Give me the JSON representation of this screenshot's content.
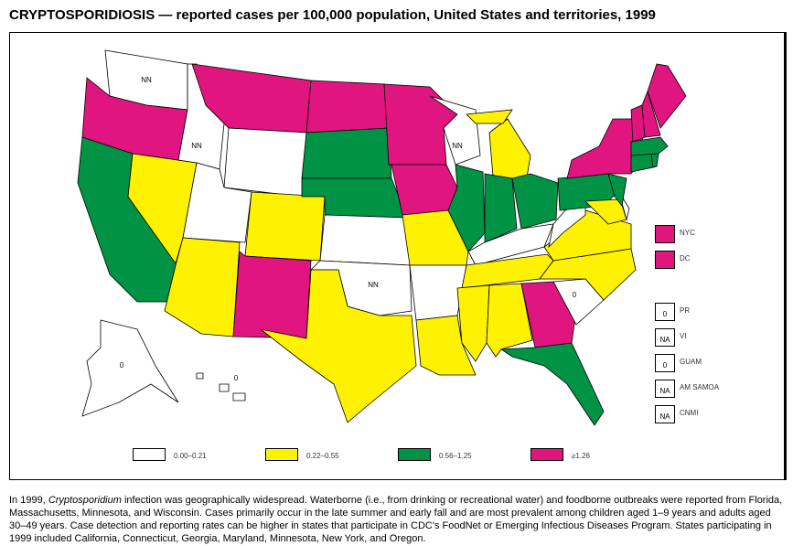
{
  "title": "CRYPTOSPORIDIOSIS — reported cases per 100,000 population, United States and territories, 1999",
  "colors": {
    "0.00-0.21": "#ffffff",
    "0.22-0.55": "#fff200",
    "0.56-1.25": "#009245",
    ">=1.26": "#e0157f"
  },
  "legend": [
    {
      "label": "0.00–0.21",
      "color": "#ffffff"
    },
    {
      "label": "0.22–0.55",
      "color": "#fff200"
    },
    {
      "label": "0.56–1.25",
      "color": "#009245"
    },
    {
      "label": "≥1.26",
      "color": "#e0157f"
    }
  ],
  "states": {
    "WA": {
      "cat": 0,
      "label": "NN"
    },
    "OR": {
      "cat": 3
    },
    "CA": {
      "cat": 2
    },
    "NV": {
      "cat": 1
    },
    "ID": {
      "cat": 0,
      "label": "NN"
    },
    "MT": {
      "cat": 3
    },
    "WY": {
      "cat": 0
    },
    "UT": {
      "cat": 0
    },
    "AZ": {
      "cat": 1
    },
    "CO": {
      "cat": 1
    },
    "NM": {
      "cat": 3
    },
    "ND": {
      "cat": 3
    },
    "SD": {
      "cat": 2
    },
    "NE": {
      "cat": 2
    },
    "KS": {
      "cat": 0
    },
    "OK": {
      "cat": 0,
      "label": "NN"
    },
    "TX": {
      "cat": 1
    },
    "MN": {
      "cat": 3
    },
    "IA": {
      "cat": 3
    },
    "MO": {
      "cat": 1
    },
    "AR": {
      "cat": 0
    },
    "LA": {
      "cat": 1
    },
    "WI": {
      "cat": 0,
      "label": "NN"
    },
    "IL": {
      "cat": 2
    },
    "MI": {
      "cat": 1
    },
    "IN": {
      "cat": 2
    },
    "OH": {
      "cat": 2
    },
    "KY": {
      "cat": 0
    },
    "TN": {
      "cat": 1
    },
    "MS": {
      "cat": 1
    },
    "AL": {
      "cat": 1
    },
    "GA": {
      "cat": 3
    },
    "FL": {
      "cat": 2
    },
    "SC": {
      "cat": 0,
      "label": "0"
    },
    "NC": {
      "cat": 1
    },
    "VA": {
      "cat": 1
    },
    "WV": {
      "cat": 0
    },
    "MD": {
      "cat": 1
    },
    "DE": {
      "cat": 0
    },
    "PA": {
      "cat": 2
    },
    "NJ": {
      "cat": 2
    },
    "NY": {
      "cat": 3
    },
    "CT": {
      "cat": 2
    },
    "RI": {
      "cat": 2
    },
    "MA": {
      "cat": 2
    },
    "VT": {
      "cat": 3
    },
    "NH": {
      "cat": 3
    },
    "ME": {
      "cat": 3
    },
    "AK": {
      "cat": 0,
      "label": "0"
    },
    "HI": {
      "cat": 0,
      "label": "0"
    }
  },
  "cities": [
    {
      "label": "NYC",
      "cat": 3
    },
    {
      "label": "DC",
      "cat": 3
    }
  ],
  "territories": [
    {
      "label": "PR",
      "value": "0"
    },
    {
      "label": "VI",
      "value": "NA"
    },
    {
      "label": "GUAM",
      "value": "0"
    },
    {
      "label": "AM SAMOA",
      "value": "NA"
    },
    {
      "label": "CNMI",
      "value": "NA"
    }
  ],
  "caption_parts": {
    "pre": "In 1999, ",
    "italic": "Cryptosporidium",
    "post": " infection was geographically widespread. Waterborne (i.e., from drinking or recreational water) and foodborne outbreaks were reported from Florida, Massachusetts, Minnesota, and Wisconsin. Cases primarily occur in the late summer and early fall and are most prevalent among children aged 1–9 years and adults aged 30–49 years. Case detection and reporting rates can be higher in states that participate in CDC's FoodNet or Emerging Infectious Diseases Program. States participating in 1999 included California, Connecticut, Georgia, Maryland, Minnesota, New York, and Oregon."
  }
}
